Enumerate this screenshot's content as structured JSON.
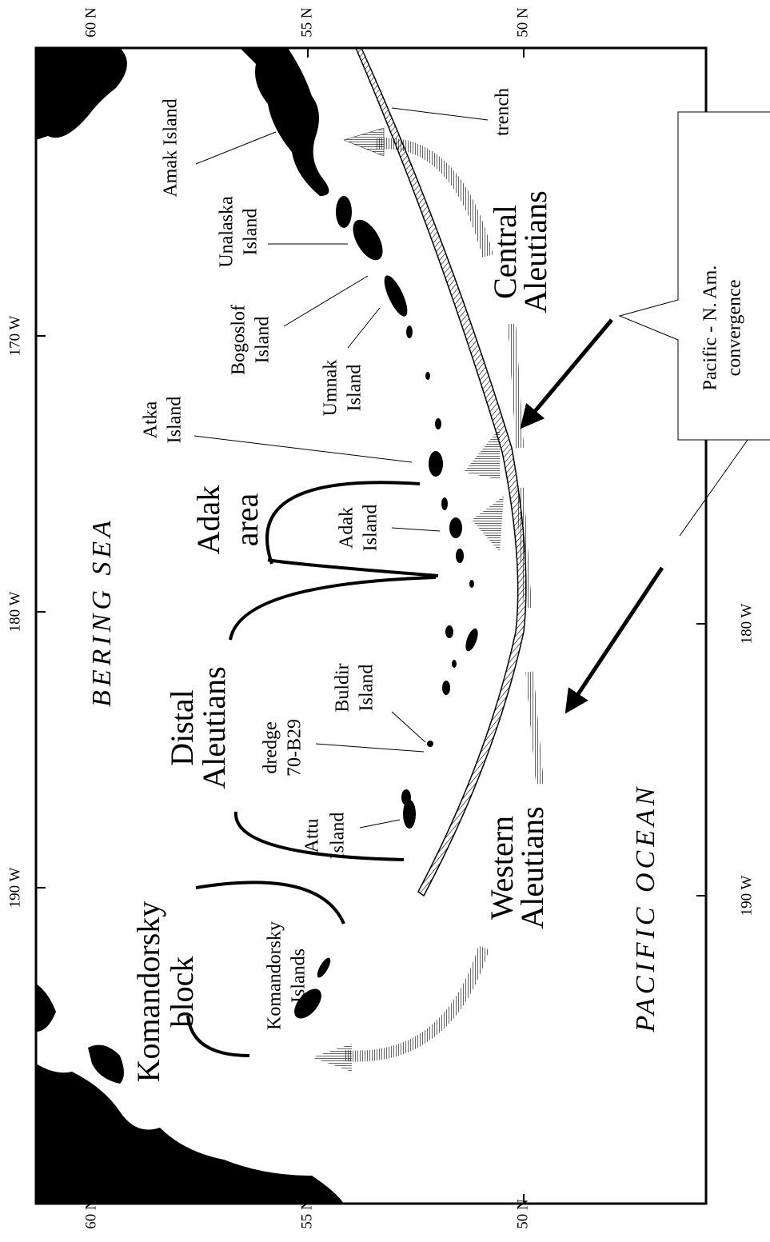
{
  "axes": {
    "top": [
      "60 N",
      "55 N",
      "50 N"
    ],
    "bottom": [
      "60 N",
      "55 N",
      "50 N"
    ],
    "left": [
      "170 W",
      "180 W",
      "190 W"
    ],
    "right": [
      "180 W",
      "190 W"
    ]
  },
  "seas": [
    "BERING SEA",
    "PACIFIC OCEAN"
  ],
  "labels": [
    {
      "lines": [
        "Amak Island"
      ]
    },
    {
      "lines": [
        "Unalaska",
        "Island"
      ]
    },
    {
      "lines": [
        "Bogoslof",
        "Island"
      ]
    },
    {
      "lines": [
        "Umnak",
        "Island"
      ]
    },
    {
      "lines": [
        "Atka",
        "Island"
      ]
    },
    {
      "lines": [
        "Adak",
        "area"
      ]
    },
    {
      "lines": [
        "Adak",
        "Island"
      ]
    },
    {
      "lines": [
        "Distal",
        "Aleutians"
      ]
    },
    {
      "lines": [
        "dredge",
        "70-B29"
      ]
    },
    {
      "lines": [
        "Buldir",
        "Island"
      ]
    },
    {
      "lines": [
        "Attu",
        "Island"
      ]
    },
    {
      "lines": [
        "Komandorsky",
        "block"
      ]
    },
    {
      "lines": [
        "Komandorsky",
        "Islands"
      ]
    },
    {
      "lines": [
        "Western",
        "Aleutians"
      ]
    },
    {
      "lines": [
        "Central",
        "Aleutians"
      ]
    },
    {
      "lines": [
        "trench"
      ]
    },
    {
      "lines": [
        "Pacific - N. Am.",
        "convergence"
      ]
    }
  ]
}
